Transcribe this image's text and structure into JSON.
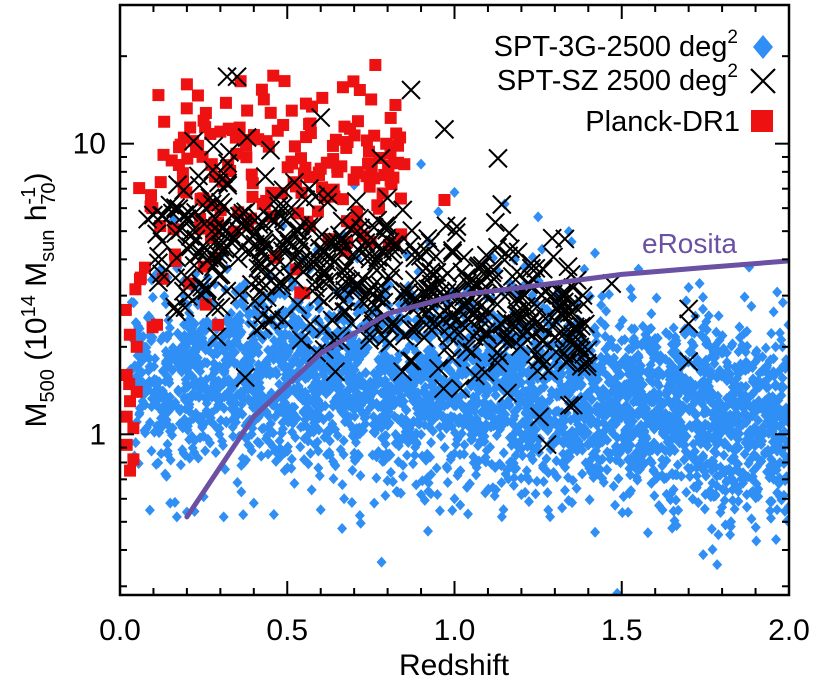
{
  "chart_data": {
    "type": "scatter",
    "xlabel": "Redshift",
    "ylabel": {
      "base": "M",
      "sub": "500",
      "open": " (10",
      "exp": "14",
      "unit": " M",
      "unit_sub": "sun",
      "h": " h",
      "h_sup": "-1",
      "h_sub": "70",
      "close": ")"
    },
    "x_ticks": [
      "0.0",
      "0.5",
      "1.0",
      "1.5",
      "2.0"
    ],
    "y_ticks": [
      "1",
      "10"
    ],
    "xlim": [
      0.0,
      2.0
    ],
    "ylim": [
      0.28,
      30
    ],
    "yscale": "log",
    "legend_position": "top-right",
    "legend": [
      {
        "text": "SPT-3G-2500 deg",
        "sup": "2",
        "marker": "diamond",
        "color": "#2f8ff5"
      },
      {
        "text": "SPT-SZ 2500 deg",
        "sup": "2",
        "marker": "cross",
        "color": "#000000"
      },
      {
        "text": "Planck-DR1",
        "sup": "",
        "marker": "square",
        "color": "#ee1111"
      }
    ],
    "series": [
      {
        "name": "SPT-3G-2500 deg²",
        "marker": "diamond",
        "color": "#2f8ff5",
        "density_model": {
          "x_range": [
            0.03,
            2.0
          ],
          "median_mass": [
            [
              0.05,
              1.5
            ],
            [
              0.3,
              1.6
            ],
            [
              0.5,
              1.6
            ],
            [
              0.8,
              1.5
            ],
            [
              1.0,
              1.45
            ],
            [
              1.5,
              1.25
            ],
            [
              2.0,
              1.1
            ]
          ],
          "mass_spread_dex": 0.16,
          "approx_count": 3500
        },
        "outliers": [
          [
            0.15,
            0.58
          ],
          [
            0.17,
            0.52
          ],
          [
            0.2,
            0.54
          ],
          [
            0.25,
            0.61
          ],
          [
            0.31,
            0.52
          ],
          [
            0.4,
            0.58
          ],
          [
            0.46,
            0.53
          ],
          [
            0.6,
            0.55
          ],
          [
            0.67,
            0.6
          ],
          [
            0.76,
            0.58
          ],
          [
            0.9,
            0.62
          ],
          [
            1.0,
            0.6
          ],
          [
            1.2,
            0.62
          ],
          [
            1.48,
            0.57
          ],
          [
            0.9,
            8.5
          ],
          [
            0.7,
            7.2
          ],
          [
            1.0,
            6.8
          ],
          [
            1.15,
            6.2
          ],
          [
            1.25,
            5.6
          ],
          [
            1.35,
            4.6
          ],
          [
            1.42,
            4.2
          ],
          [
            1.55,
            3.7
          ],
          [
            1.7,
            3.2
          ],
          [
            1.72,
            2.55
          ],
          [
            1.9,
            1.9
          ],
          [
            1.96,
            2.0
          ],
          [
            2.0,
            0.93
          ]
        ]
      },
      {
        "name": "SPT-SZ 2500 deg²",
        "marker": "cross",
        "color": "#000000",
        "density_model": {
          "x_range": [
            0.08,
            1.4
          ],
          "median_mass": [
            [
              0.1,
              4.2
            ],
            [
              0.3,
              4.6
            ],
            [
              0.5,
              4.0
            ],
            [
              0.7,
              3.5
            ],
            [
              0.9,
              3.0
            ],
            [
              1.1,
              2.6
            ],
            [
              1.3,
              2.3
            ]
          ],
          "mass_spread_dex": 0.13,
          "approx_count": 520
        },
        "outliers": [
          [
            0.32,
            17.0
          ],
          [
            0.35,
            17.0
          ],
          [
            0.6,
            12.3
          ],
          [
            0.87,
            15.3
          ],
          [
            0.97,
            11.2
          ],
          [
            1.13,
            8.9
          ],
          [
            1.33,
            4.7
          ],
          [
            1.47,
            3.3
          ],
          [
            1.7,
            2.7
          ],
          [
            1.7,
            2.4
          ],
          [
            1.7,
            1.78
          ],
          [
            0.78,
            8.9
          ],
          [
            0.38,
            10.5
          ],
          [
            0.45,
            9.5
          ],
          [
            0.28,
            9.8
          ],
          [
            0.22,
            10.2
          ]
        ]
      },
      {
        "name": "Planck-DR1",
        "marker": "square",
        "color": "#ee1111",
        "density_model": {
          "x_range": [
            0.01,
            0.85
          ],
          "median_mass": [
            [
              0.02,
              2.5
            ],
            [
              0.05,
              4.0
            ],
            [
              0.1,
              5.5
            ],
            [
              0.2,
              7.0
            ],
            [
              0.3,
              7.5
            ],
            [
              0.5,
              8.0
            ],
            [
              0.7,
              8.0
            ],
            [
              0.8,
              7.8
            ]
          ],
          "mass_spread_dex": 0.18,
          "approx_count": 190
        },
        "outliers": [
          [
            0.2,
            16.0
          ],
          [
            0.25,
            12.0
          ],
          [
            0.3,
            11.0
          ],
          [
            0.38,
            13.0
          ],
          [
            0.43,
            14.2
          ],
          [
            0.27,
            10.8
          ],
          [
            0.02,
            0.92
          ],
          [
            0.03,
            0.75
          ],
          [
            0.04,
            0.82
          ],
          [
            0.02,
            1.15
          ],
          [
            0.04,
            1.05
          ],
          [
            0.03,
            1.3
          ],
          [
            0.05,
            1.4
          ],
          [
            0.02,
            1.6
          ],
          [
            0.05,
            2.0
          ],
          [
            0.85,
            8.5
          ],
          [
            0.97,
            6.4
          ],
          [
            0.79,
            7.8
          ],
          [
            0.76,
            7.6
          ],
          [
            0.6,
            8.2
          ],
          [
            0.65,
            8.0
          ],
          [
            0.55,
            7.9
          ]
        ]
      },
      {
        "name": "eRosita",
        "type": "line",
        "color": "#6a51a3",
        "label": "eRosita",
        "points": [
          [
            0.2,
            0.52
          ],
          [
            0.4,
            1.15
          ],
          [
            0.6,
            1.9
          ],
          [
            0.8,
            2.6
          ],
          [
            1.0,
            3.0
          ],
          [
            1.2,
            3.2
          ],
          [
            1.5,
            3.55
          ],
          [
            1.75,
            3.75
          ],
          [
            2.0,
            3.95
          ]
        ]
      }
    ]
  }
}
